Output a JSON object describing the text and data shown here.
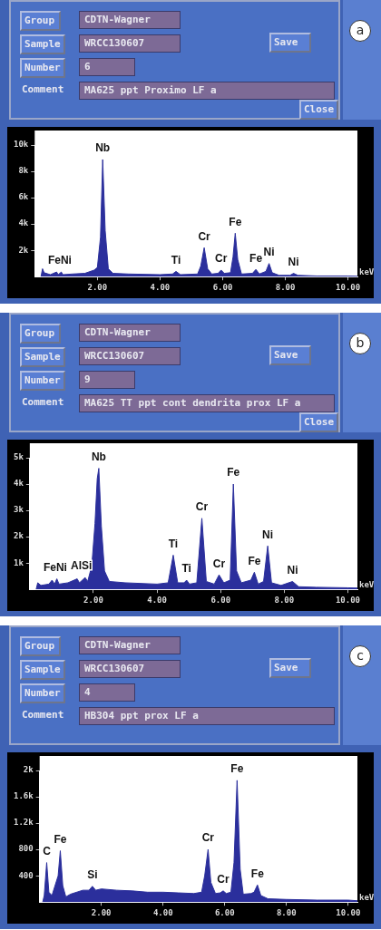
{
  "chart_data": [
    {
      "type": "area",
      "title": "a",
      "xlabel": "keV",
      "marker": "none",
      "legend": false,
      "xlim": [
        0,
        10.3
      ],
      "ylim": [
        0,
        10000
      ],
      "xticks": [
        {
          "value": 2,
          "label": "2.00"
        },
        {
          "value": 4,
          "label": "4.00"
        },
        {
          "value": 6,
          "label": "6.00"
        },
        {
          "value": 8,
          "label": "8.00"
        },
        {
          "value": 10,
          "label": "10.00"
        }
      ],
      "yticks": [
        {
          "value": 2000,
          "label": "2k"
        },
        {
          "value": 4000,
          "label": "4k"
        },
        {
          "value": 6000,
          "label": "6k"
        },
        {
          "value": 8000,
          "label": "8k"
        },
        {
          "value": 10000,
          "label": "10k"
        }
      ],
      "series": [
        {
          "color": "#2b2f9c",
          "x": [
            0.2,
            0.25,
            0.3,
            0.5,
            0.7,
            0.75,
            0.85,
            0.9,
            1.2,
            1.6,
            1.9,
            2.0,
            2.1,
            2.17,
            2.25,
            2.35,
            2.5,
            3.0,
            4.0,
            4.4,
            4.51,
            4.65,
            5.2,
            5.3,
            5.41,
            5.52,
            5.65,
            5.85,
            5.95,
            6.05,
            6.25,
            6.33,
            6.4,
            6.48,
            6.6,
            6.95,
            7.06,
            7.17,
            7.38,
            7.48,
            7.58,
            7.8,
            8.15,
            8.26,
            8.4,
            9.0,
            10.0,
            10.3
          ],
          "values": [
            0,
            600,
            300,
            150,
            350,
            150,
            350,
            150,
            200,
            250,
            500,
            700,
            3000,
            8900,
            3500,
            600,
            250,
            200,
            150,
            200,
            400,
            150,
            200,
            800,
            2200,
            600,
            200,
            250,
            500,
            250,
            300,
            1500,
            3300,
            1300,
            200,
            250,
            550,
            200,
            400,
            1000,
            300,
            100,
            100,
            250,
            100,
            50,
            50,
            30
          ]
        }
      ],
      "annotations": [
        {
          "text": "Nb",
          "x": 2.17,
          "y": 8900
        },
        {
          "text": "FeNi",
          "x": 0.8,
          "y": 350
        },
        {
          "text": "Ti",
          "x": 4.51,
          "y": 400
        },
        {
          "text": "Cr",
          "x": 5.41,
          "y": 2200
        },
        {
          "text": "Cr",
          "x": 5.95,
          "y": 500
        },
        {
          "text": "Fe",
          "x": 6.4,
          "y": 3300
        },
        {
          "text": "Fe",
          "x": 7.06,
          "y": 550
        },
        {
          "text": "Ni",
          "x": 7.48,
          "y": 1000
        },
        {
          "text": "Ni",
          "x": 8.26,
          "y": 250
        },
        "Group",
        "CDTN-Wagner",
        "Sample",
        "WRCC130607",
        "Save",
        "Number",
        "6",
        "Comment",
        "MA625 ppt Proximo LF a",
        "Close"
      ]
    },
    {
      "type": "area",
      "title": "b",
      "xlabel": "keV",
      "marker": "none",
      "legend": false,
      "xlim": [
        0,
        10.3
      ],
      "ylim": [
        0,
        5000
      ],
      "xticks": [
        {
          "value": 2,
          "label": "2.00"
        },
        {
          "value": 4,
          "label": "4.00"
        },
        {
          "value": 6,
          "label": "6.00"
        },
        {
          "value": 8,
          "label": "8.00"
        },
        {
          "value": 10,
          "label": "10.00"
        }
      ],
      "yticks": [
        {
          "value": 1000,
          "label": "1k"
        },
        {
          "value": 2000,
          "label": "2k"
        },
        {
          "value": 3000,
          "label": "3k"
        },
        {
          "value": 4000,
          "label": "4k"
        },
        {
          "value": 5000,
          "label": "5k"
        }
      ],
      "series": [
        {
          "color": "#2b2f9c",
          "x": [
            0.2,
            0.25,
            0.35,
            0.6,
            0.7,
            0.78,
            0.85,
            0.92,
            1.2,
            1.49,
            1.56,
            1.74,
            1.82,
            1.95,
            2.05,
            2.12,
            2.17,
            2.25,
            2.35,
            2.5,
            3.0,
            4.0,
            4.35,
            4.51,
            4.65,
            4.85,
            4.93,
            5.02,
            5.25,
            5.41,
            5.55,
            5.8,
            5.95,
            6.1,
            6.3,
            6.4,
            6.5,
            6.65,
            6.95,
            7.06,
            7.18,
            7.35,
            7.48,
            7.6,
            7.9,
            8.26,
            8.45,
            9.0,
            10.0,
            10.3
          ],
          "values": [
            0,
            250,
            150,
            200,
            350,
            200,
            400,
            200,
            250,
            400,
            250,
            450,
            300,
            900,
            2500,
            4200,
            4600,
            2400,
            700,
            300,
            250,
            200,
            250,
            1300,
            250,
            250,
            350,
            200,
            250,
            2700,
            300,
            200,
            550,
            250,
            350,
            4000,
            700,
            250,
            350,
            650,
            200,
            300,
            1650,
            250,
            150,
            300,
            100,
            80,
            60,
            50
          ]
        }
      ],
      "annotations": [
        {
          "text": "Nb",
          "x": 2.17,
          "y": 4600
        },
        {
          "text": "FeNi",
          "x": 0.8,
          "y": 400
        },
        {
          "text": "AlSi",
          "x": 1.62,
          "y": 450
        },
        {
          "text": "Ti",
          "x": 4.51,
          "y": 1300
        },
        {
          "text": "Ti",
          "x": 4.93,
          "y": 350
        },
        {
          "text": "Cr",
          "x": 5.41,
          "y": 2700
        },
        {
          "text": "Cr",
          "x": 5.95,
          "y": 550
        },
        {
          "text": "Fe",
          "x": 6.4,
          "y": 4000
        },
        {
          "text": "Fe",
          "x": 7.06,
          "y": 650
        },
        {
          "text": "Ni",
          "x": 7.48,
          "y": 1650
        },
        {
          "text": "Ni",
          "x": 8.26,
          "y": 300
        },
        "Group",
        "CDTN-Wagner",
        "Sample",
        "WRCC130607",
        "Save",
        "Number",
        "9",
        "Comment",
        "MA625 TT ppt cont dendrita prox LF a",
        "Close"
      ]
    },
    {
      "type": "area",
      "title": "c",
      "xlabel": "keV",
      "marker": "none",
      "legend": false,
      "xlim": [
        0,
        10.3
      ],
      "ylim": [
        0,
        2000
      ],
      "xticks": [
        {
          "value": 2,
          "label": "2.00"
        },
        {
          "value": 4,
          "label": "4.00"
        },
        {
          "value": 6,
          "label": "6.00"
        },
        {
          "value": 8,
          "label": "8.00"
        },
        {
          "value": 10,
          "label": "10.00"
        }
      ],
      "yticks": [
        400,
        800,
        {
          "value": 1200,
          "label": "1.2k"
        },
        {
          "value": 1600,
          "label": "1.6k"
        },
        {
          "value": 2000,
          "label": "2k"
        }
      ],
      "series": [
        {
          "color": "#2b2f9c",
          "x": [
            0.1,
            0.15,
            0.23,
            0.3,
            0.4,
            0.5,
            0.6,
            0.67,
            0.75,
            0.85,
            1.0,
            1.4,
            1.6,
            1.71,
            1.82,
            2.0,
            2.5,
            3.0,
            3.5,
            4.0,
            4.5,
            5.0,
            5.25,
            5.35,
            5.46,
            5.55,
            5.7,
            5.85,
            5.95,
            6.05,
            6.2,
            6.3,
            6.4,
            6.5,
            6.6,
            6.85,
            6.95,
            7.06,
            7.17,
            7.4,
            8.0,
            9.0,
            10.0,
            10.3
          ],
          "values": [
            0,
            100,
            600,
            150,
            100,
            250,
            400,
            780,
            250,
            80,
            120,
            180,
            180,
            240,
            180,
            200,
            180,
            170,
            150,
            150,
            140,
            130,
            150,
            400,
            800,
            300,
            130,
            140,
            170,
            130,
            150,
            600,
            1850,
            500,
            120,
            130,
            150,
            260,
            100,
            50,
            40,
            30,
            30,
            20
          ]
        }
      ],
      "annotations": [
        {
          "text": "C",
          "x": 0.23,
          "y": 600
        },
        {
          "text": "Fe",
          "x": 0.67,
          "y": 780
        },
        {
          "text": "Si",
          "x": 1.71,
          "y": 240
        },
        {
          "text": "Cr",
          "x": 5.46,
          "y": 800
        },
        {
          "text": "Cr",
          "x": 5.95,
          "y": 170
        },
        {
          "text": "Fe",
          "x": 6.4,
          "y": 1850
        },
        {
          "text": "Fe",
          "x": 7.06,
          "y": 260
        },
        "Group",
        "CDTN-Wagner",
        "Sample",
        "WRCC130607",
        "Save",
        "Number",
        "4",
        "Comment",
        "HB304 ppt prox LF a"
      ]
    }
  ]
}
